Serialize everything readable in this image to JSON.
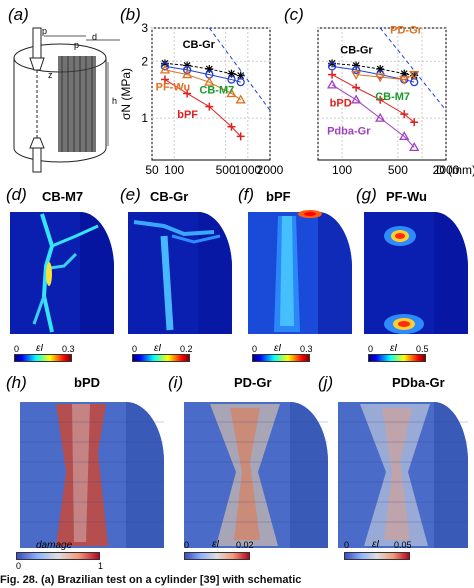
{
  "panels": {
    "a": "(a)",
    "b": "(b)",
    "c": "(c)",
    "d": "(d)",
    "e": "(e)",
    "f": "(f)",
    "g": "(g)",
    "h": "(h)",
    "i": "(i)",
    "j": "(j)"
  },
  "schematic_labels": {
    "p1": "p",
    "p2": "p",
    "d": "d",
    "h": "h",
    "z": "z"
  },
  "axes": {
    "y_label": "σN (MPa)",
    "x_label": "D (mm)",
    "y_ticks": [
      "3",
      "2",
      "1"
    ],
    "x_ticks": [
      "50",
      "100",
      "500",
      "1000",
      "2000"
    ],
    "x_ticks_c": [
      "100",
      "500",
      "2000"
    ]
  },
  "chart_data": [
    {
      "type": "scatter",
      "panel": "b",
      "xlabel": "D (mm)",
      "ylabel": "σN (MPa)",
      "x_scale": "log",
      "y_scale": "log",
      "xlim": [
        50,
        2000
      ],
      "ylim": [
        0.6,
        3
      ],
      "labels": [
        "CB-Gr",
        "PF-Wu",
        "CB-M7",
        "bPF"
      ],
      "series": [
        {
          "name": "CB-Gr",
          "marker": "asterisk",
          "color": "#000000",
          "x": [
            75,
            150,
            300,
            600,
            800
          ],
          "y": [
            1.95,
            1.9,
            1.82,
            1.72,
            1.68
          ]
        },
        {
          "name": "CB-M7",
          "marker": "circle",
          "color": "#1f3fd6",
          "x": [
            75,
            150,
            300,
            600,
            800
          ],
          "y": [
            1.88,
            1.8,
            1.7,
            1.6,
            1.55
          ]
        },
        {
          "name": "PF-Wu",
          "marker": "triangle",
          "color": "#e07020",
          "x": [
            75,
            150,
            300,
            600,
            800
          ],
          "y": [
            1.8,
            1.7,
            1.55,
            1.35,
            1.25
          ]
        },
        {
          "name": "bPF",
          "marker": "plus",
          "color": "#e02020",
          "x": [
            75,
            150,
            300,
            600,
            800
          ],
          "y": [
            1.6,
            1.35,
            1.15,
            0.9,
            0.8
          ]
        }
      ]
    },
    {
      "type": "scatter",
      "panel": "c",
      "xlabel": "D (mm)",
      "x_scale": "log",
      "y_scale": "log",
      "xlim": [
        50,
        2000
      ],
      "ylim": [
        0.6,
        3
      ],
      "labels": [
        "CB-Gr",
        "PD-Gr",
        "bPD",
        "CB-M7",
        "Pdba-Gr"
      ],
      "series": [
        {
          "name": "CB-Gr",
          "marker": "asterisk",
          "color": "#000000",
          "x": [
            75,
            150,
            300,
            600,
            800
          ],
          "y": [
            1.95,
            1.9,
            1.82,
            1.72,
            1.68
          ]
        },
        {
          "name": "CB-M7",
          "marker": "circle",
          "color": "#1f3fd6",
          "x": [
            75,
            150,
            300,
            600,
            800
          ],
          "y": [
            1.88,
            1.8,
            1.7,
            1.6,
            1.55
          ]
        },
        {
          "name": "PD-Gr",
          "marker": "triangle-down",
          "color": "#e07020",
          "x": [
            150,
            300,
            600,
            800
          ],
          "y": [
            1.7,
            1.65,
            1.6,
            1.7
          ]
        },
        {
          "name": "bPD",
          "marker": "plus",
          "color": "#e02020",
          "x": [
            75,
            150,
            300,
            600,
            800
          ],
          "y": [
            1.7,
            1.45,
            1.25,
            1.05,
            0.95
          ]
        },
        {
          "name": "Pdba-Gr",
          "marker": "triangle",
          "color": "#a040c0",
          "x": [
            75,
            150,
            300,
            600,
            800
          ],
          "y": [
            1.5,
            1.25,
            1.0,
            0.8,
            0.7
          ]
        }
      ]
    }
  ],
  "contours": {
    "d": {
      "title": "CB-M7",
      "min": "0",
      "max": "0.3",
      "symbol": "εI"
    },
    "e": {
      "title": "CB-Gr",
      "min": "0",
      "max": "0.2",
      "symbol": "εI"
    },
    "f": {
      "title": "bPF",
      "min": "0",
      "max": "0.3",
      "symbol": "εI"
    },
    "g": {
      "title": "PF-Wu",
      "min": "0",
      "max": "0.5",
      "symbol": "εI"
    },
    "h": {
      "title": "bPD",
      "min": "0",
      "max": "1",
      "symbol": "damage"
    },
    "i": {
      "title": "PD-Gr",
      "min": "0",
      "max": "0.02",
      "symbol": "εI"
    },
    "j": {
      "title": "PDba-Gr",
      "min": "0",
      "max": "0.05",
      "symbol": "εI"
    }
  },
  "caption": "Fig. 28. (a) Brazilian test on a cylinder [39] with schematic"
}
